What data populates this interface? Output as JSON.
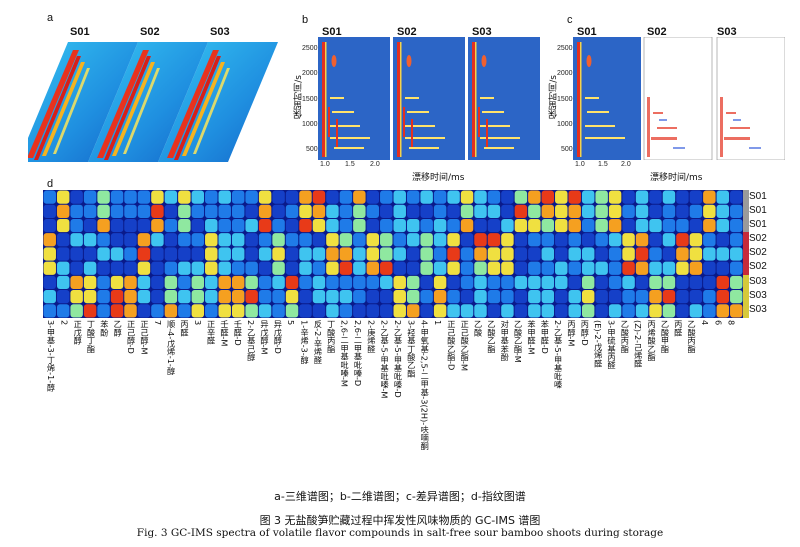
{
  "panels": {
    "a": {
      "label": "a",
      "samples": [
        "S01",
        "S02",
        "S03"
      ]
    },
    "b": {
      "label": "b",
      "samples": [
        "S01",
        "S02",
        "S03"
      ],
      "y_axis_title": "保留时间/s",
      "x_axis_title": "漂移时间/ms",
      "y_ticks": [
        "2500",
        "2000",
        "1500",
        "1000",
        "500"
      ],
      "x_ticks": [
        "1.0",
        "1.5",
        "2.0"
      ]
    },
    "c": {
      "label": "c",
      "samples": [
        "S01",
        "S02",
        "S03"
      ],
      "y_axis_title": "保留时间/s",
      "x_axis_title": "漂移时间/ms",
      "y_ticks": [
        "2500",
        "2000",
        "1500",
        "1000",
        "500"
      ],
      "x_ticks": [
        "1.0",
        "1.5",
        "2.0"
      ]
    },
    "d": {
      "label": "d",
      "row_labels": [
        "S01",
        "S01",
        "S01",
        "S02",
        "S02",
        "S02",
        "S03",
        "S03",
        "S03"
      ],
      "row_colors": [
        "#9a9a9a",
        "#c62a3a",
        "#d6c93a"
      ],
      "compounds": [
        "3-甲基-3-丁烯-1-醇",
        "2",
        "正戊醇",
        "丁酸丁酯",
        "苯酚",
        "乙醇",
        "正己醇-D",
        "正己醇-M",
        "7",
        "顺-4-戊烯-1-醇",
        "丙醛",
        "3",
        "正辛醛",
        "壬醛-M",
        "壬醛-D",
        "2-乙基己醇",
        "异戊醇-M",
        "异戊醇-D",
        "5",
        "1-辛烯-3-醇",
        "反-2-辛烯醛",
        "丁酸丙酯",
        "2,6-二甲基吡嗪-M",
        "2,6-二甲基吡嗪-D",
        "2-庚烯醛",
        "2-乙基-5-甲基吡嗪-M",
        "2-乙基-5-甲基吡嗪-D",
        "3-羟基丁酸乙酯",
        "4-甲氧基-2,5-二甲基-3(2H)-呋喃酮",
        "1",
        "正己酸乙酯-D",
        "正己酸乙酯-M",
        "乙酸",
        "乙酸乙酯",
        "对甲基苯酚",
        "乙酸乙酯-M",
        "苯甲醛-M",
        "苯甲醛-D",
        "2-乙基-5-甲基吡嗪",
        "丙醇-M",
        "丙醇-D",
        "(E)-2-戊烯醛",
        "3-甲硫基丙醛",
        "乙酸丙酯",
        "(Z)-2-己烯醛",
        "丙烯酸乙酯",
        "乙酸甲酯",
        "丙醛",
        "乙酸丙酯",
        "4",
        "6",
        "8"
      ]
    }
  },
  "captions": {
    "legend": "a-三维谱图；b-二维谱图；c-差异谱图；d-指纹图谱",
    "title_zh": "图 3   无盐酸笋贮藏过程中挥发性风味物质的 GC-IMS 谱图",
    "title_en": "Fig. 3   GC-IMS spectra of volatile flavor compounds in salt-free sour bamboo shoots during storage"
  }
}
